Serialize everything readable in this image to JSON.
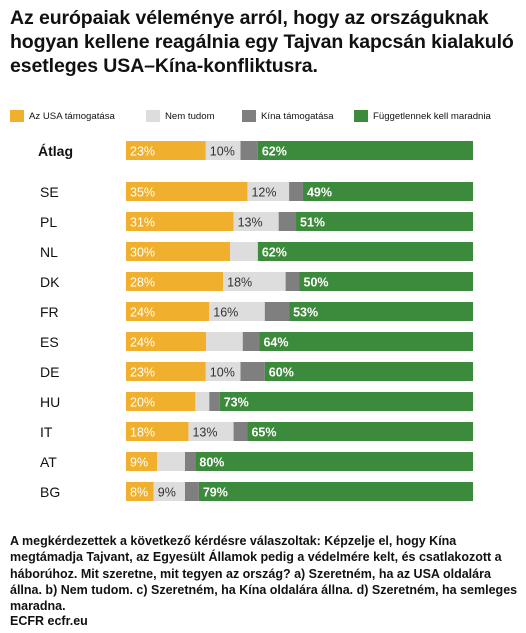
{
  "title": "Az európaiak véleménye arról, hogy az országuknak hogyan kellene reagálnia egy Tajvan kapcsán kialakuló esetleges USA–Kína-konfliktusra.",
  "footnote": "A megkérdezettek a következő kérdésre válaszoltak: Képzelje el, hogy Kína megtámadja Tajvant, az Egyesült Államok pedig a védelmére kelt, és csatlakozott a háborúhoz. Mit szeretne, mit tegyen az ország? a) Szeretném, ha az USA oldalára állna. b) Nem tudom. c) Szeretném, ha Kína oldalára állna. d) Szeretném, ha semleges maradna.",
  "source": "ECFR ecfr.eu",
  "colors": {
    "usa": "#F0B02D",
    "dontknow": "#DDDDDD",
    "china": "#7F7F7F",
    "neutral": "#3C8A3C"
  },
  "chart_data": {
    "type": "bar",
    "orientation": "horizontal",
    "stacked": true,
    "xlim": [
      0,
      100
    ],
    "unit": "%",
    "legend_position": "top",
    "categories": [
      "Átlag",
      "SE",
      "PL",
      "NL",
      "DK",
      "FR",
      "ES",
      "DE",
      "HU",
      "IT",
      "AT",
      "BG"
    ],
    "series": [
      {
        "name": "Az USA támogatása",
        "key": "usa",
        "values": [
          23,
          35,
          31,
          30,
          28,
          24,
          24,
          23,
          20,
          18,
          9,
          8
        ]
      },
      {
        "name": "Nem tudom",
        "key": "dontknow",
        "values": [
          10,
          12,
          13,
          8,
          18,
          16,
          11,
          10,
          4,
          13,
          8,
          9
        ]
      },
      {
        "name": "Kína támogatása",
        "key": "china",
        "values": [
          5,
          4,
          5,
          0,
          4,
          7,
          5,
          7,
          3,
          4,
          3,
          4
        ]
      },
      {
        "name": "Függetlennek kell maradnia",
        "key": "neutral",
        "values": [
          62,
          49,
          51,
          62,
          50,
          53,
          64,
          60,
          73,
          65,
          80,
          79
        ]
      }
    ],
    "data_labels": [
      [
        "23%",
        "10%",
        "",
        "62%"
      ],
      [
        "35%",
        "12%",
        "",
        "49%"
      ],
      [
        "31%",
        "13%",
        "",
        "51%"
      ],
      [
        "30%",
        "",
        "",
        "62%"
      ],
      [
        "28%",
        "18%",
        "",
        "50%"
      ],
      [
        "24%",
        "16%",
        "",
        "53%"
      ],
      [
        "24%",
        "",
        "",
        "64%"
      ],
      [
        "23%",
        "10%",
        "",
        "60%"
      ],
      [
        "20%",
        "",
        "",
        "73%"
      ],
      [
        "18%",
        "13%",
        "",
        "65%"
      ],
      [
        "9%",
        "",
        "",
        "80%"
      ],
      [
        "8%",
        "9%",
        "",
        "79%"
      ]
    ]
  }
}
